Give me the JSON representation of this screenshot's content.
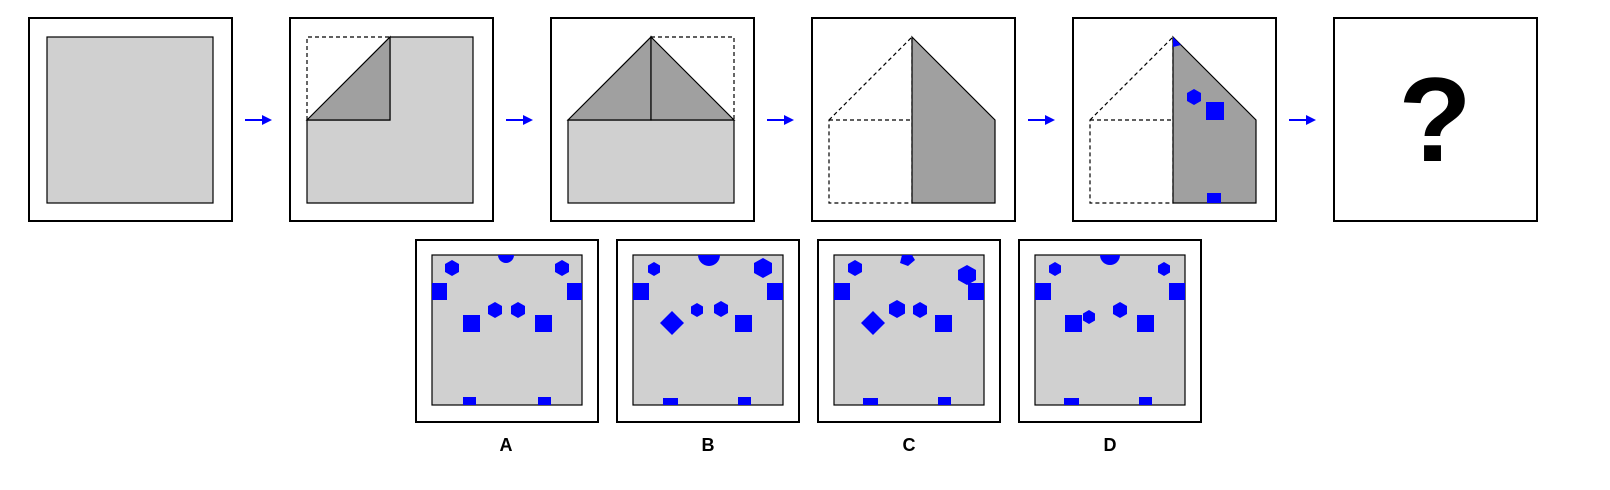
{
  "puzzle": {
    "question_symbol": "?",
    "options": [
      {
        "label": "A"
      },
      {
        "label": "B"
      },
      {
        "label": "C"
      },
      {
        "label": "D"
      }
    ]
  },
  "colors": {
    "paper": "#d0d0d0",
    "folded_flap": "#a0a0a0",
    "hole": "#0000ff",
    "arrow": "#0000ff"
  }
}
